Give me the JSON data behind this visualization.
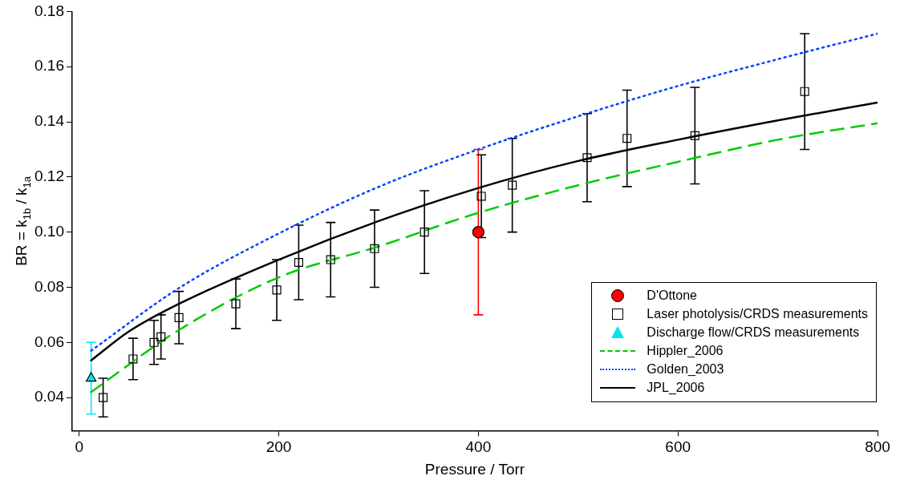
{
  "chart_data": {
    "type": "scatter",
    "xlabel": "Pressure / Torr",
    "ylabel": "BR = k$_{1b}$ / k$_{1a}$",
    "xlim": [
      -7,
      800
    ],
    "xticks": [
      0,
      200,
      400,
      600,
      800
    ],
    "ylim": [
      0.028,
      0.18
    ],
    "yticks": [
      {
        "value": 0.04,
        "label": "0.04"
      },
      {
        "value": 0.06,
        "label": "0.06"
      },
      {
        "value": 0.08,
        "label": "0.08"
      },
      {
        "value": 0.1,
        "label": "0.10"
      },
      {
        "value": 0.12,
        "label": "0.12"
      },
      {
        "value": 0.14,
        "label": "0.14"
      },
      {
        "value": 0.16,
        "label": "0.16"
      },
      {
        "value": 0.18,
        "label": "0.18"
      }
    ],
    "grid": false,
    "legend": "bottom right",
    "series": [
      {
        "name": "D'Ottone",
        "marker": "circle",
        "color": "#ff0000",
        "x": [
          400
        ],
        "values": [
          0.1
        ],
        "errors": [
          0.03
        ]
      },
      {
        "name": "Laser photolysis/CRDS measurements",
        "marker": "square",
        "color": "#000000",
        "x": [
          24,
          54,
          75,
          82,
          100,
          157,
          198,
          220,
          252,
          296,
          346,
          403,
          434,
          509,
          549,
          617,
          727
        ],
        "values": [
          0.04,
          0.054,
          0.06,
          0.062,
          0.069,
          0.074,
          0.079,
          0.089,
          0.09,
          0.094,
          0.1,
          0.113,
          0.117,
          0.127,
          0.134,
          0.135,
          0.151
        ],
        "errors": [
          0.007,
          0.0075,
          0.008,
          0.008,
          0.0095,
          0.009,
          0.011,
          0.0135,
          0.0135,
          0.014,
          0.015,
          0.015,
          0.017,
          0.016,
          0.0175,
          0.0175,
          0.021
        ]
      },
      {
        "name": "Discharge flow/CRDS measurements",
        "marker": "triangle",
        "color": "#00e5ee",
        "x": [
          12
        ],
        "values": [
          0.047
        ],
        "errors": [
          0.013
        ]
      },
      {
        "name": "Hippler_2006",
        "type": "line",
        "line_style": "dashed",
        "color": "#00cc00",
        "x": [
          12,
          100,
          200,
          300,
          400,
          500,
          600,
          700,
          800
        ],
        "values": [
          0.042,
          0.0645,
          0.0836,
          0.0948,
          0.107,
          0.117,
          0.1255,
          0.1335,
          0.1395
        ]
      },
      {
        "name": "Golden_2003",
        "type": "line",
        "line_style": "dotted",
        "color": "#0044ff",
        "x": [
          12,
          100,
          200,
          300,
          400,
          500,
          600,
          700,
          800
        ],
        "values": [
          0.057,
          0.0797,
          0.0995,
          0.1164,
          0.13,
          0.142,
          0.153,
          0.1627,
          0.172
        ]
      },
      {
        "name": "JPL_2006",
        "type": "line",
        "line_style": "solid",
        "color": "#000000",
        "x": [
          12,
          50,
          100,
          200,
          300,
          400,
          500,
          600,
          700,
          800
        ],
        "values": [
          0.0535,
          0.064,
          0.074,
          0.09,
          0.104,
          0.116,
          0.1258,
          0.1335,
          0.1405,
          0.147
        ]
      }
    ]
  }
}
